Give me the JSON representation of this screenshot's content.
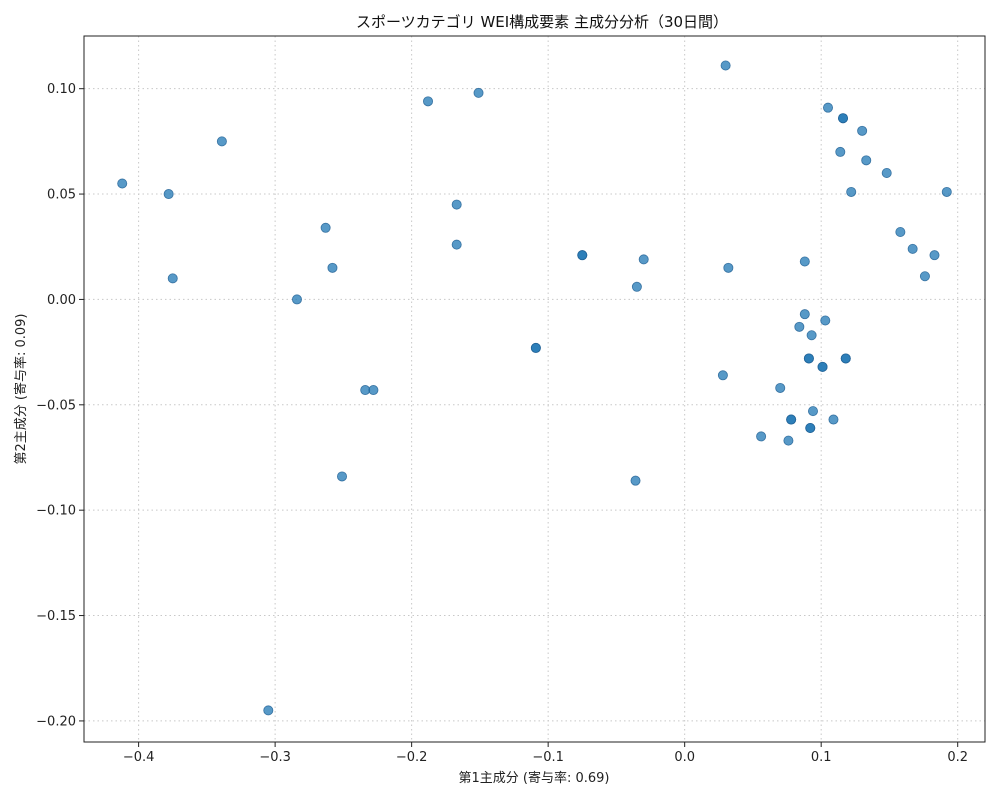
{
  "chart_data": {
    "type": "scatter",
    "title": "スポーツカテゴリ WEI構成要素 主成分分析（30日間）",
    "xlabel": "第1主成分 (寄与率: 0.69)",
    "ylabel": "第2主成分 (寄与率: 0.09)",
    "xlim": [
      -0.44,
      0.22
    ],
    "ylim": [
      -0.21,
      0.125
    ],
    "xticks": [
      -0.4,
      -0.3,
      -0.2,
      -0.1,
      0.0,
      0.1,
      0.2
    ],
    "xtick_labels": [
      "−0.4",
      "−0.3",
      "−0.2",
      "−0.1",
      "0.0",
      "0.1",
      "0.2"
    ],
    "yticks": [
      -0.2,
      -0.15,
      -0.1,
      -0.05,
      0.0,
      0.05,
      0.1
    ],
    "ytick_labels": [
      "−0.20",
      "−0.15",
      "−0.10",
      "−0.05",
      "0.00",
      "0.05",
      "0.10"
    ],
    "grid": true,
    "color": "#1f77b4",
    "points": [
      [
        -0.412,
        0.055
      ],
      [
        -0.378,
        0.05
      ],
      [
        -0.375,
        0.01
      ],
      [
        -0.339,
        0.075
      ],
      [
        -0.305,
        -0.195
      ],
      [
        -0.284,
        0.0
      ],
      [
        -0.263,
        0.034
      ],
      [
        -0.258,
        0.015
      ],
      [
        -0.251,
        -0.084
      ],
      [
        -0.234,
        -0.043
      ],
      [
        -0.228,
        -0.043
      ],
      [
        -0.188,
        0.094
      ],
      [
        -0.167,
        0.045
      ],
      [
        -0.167,
        0.026
      ],
      [
        -0.151,
        0.098
      ],
      [
        -0.109,
        -0.023
      ],
      [
        -0.109,
        -0.023
      ],
      [
        -0.075,
        0.021
      ],
      [
        -0.075,
        0.021
      ],
      [
        -0.036,
        -0.086
      ],
      [
        -0.035,
        0.006
      ],
      [
        -0.03,
        0.019
      ],
      [
        0.028,
        -0.036
      ],
      [
        0.03,
        0.111
      ],
      [
        0.032,
        0.015
      ],
      [
        0.056,
        -0.065
      ],
      [
        0.07,
        -0.042
      ],
      [
        0.076,
        -0.067
      ],
      [
        0.078,
        -0.057
      ],
      [
        0.078,
        -0.057
      ],
      [
        0.084,
        -0.013
      ],
      [
        0.088,
        -0.007
      ],
      [
        0.088,
        0.018
      ],
      [
        0.091,
        -0.028
      ],
      [
        0.091,
        -0.028
      ],
      [
        0.092,
        -0.061
      ],
      [
        0.092,
        -0.061
      ],
      [
        0.093,
        -0.017
      ],
      [
        0.094,
        -0.053
      ],
      [
        0.101,
        -0.032
      ],
      [
        0.101,
        -0.032
      ],
      [
        0.103,
        -0.01
      ],
      [
        0.105,
        0.091
      ],
      [
        0.109,
        -0.057
      ],
      [
        0.114,
        0.07
      ],
      [
        0.116,
        0.086
      ],
      [
        0.116,
        0.086
      ],
      [
        0.118,
        -0.028
      ],
      [
        0.118,
        -0.028
      ],
      [
        0.122,
        0.051
      ],
      [
        0.13,
        0.08
      ],
      [
        0.133,
        0.066
      ],
      [
        0.148,
        0.06
      ],
      [
        0.158,
        0.032
      ],
      [
        0.167,
        0.024
      ],
      [
        0.176,
        0.011
      ],
      [
        0.183,
        0.021
      ],
      [
        0.192,
        0.051
      ]
    ]
  }
}
